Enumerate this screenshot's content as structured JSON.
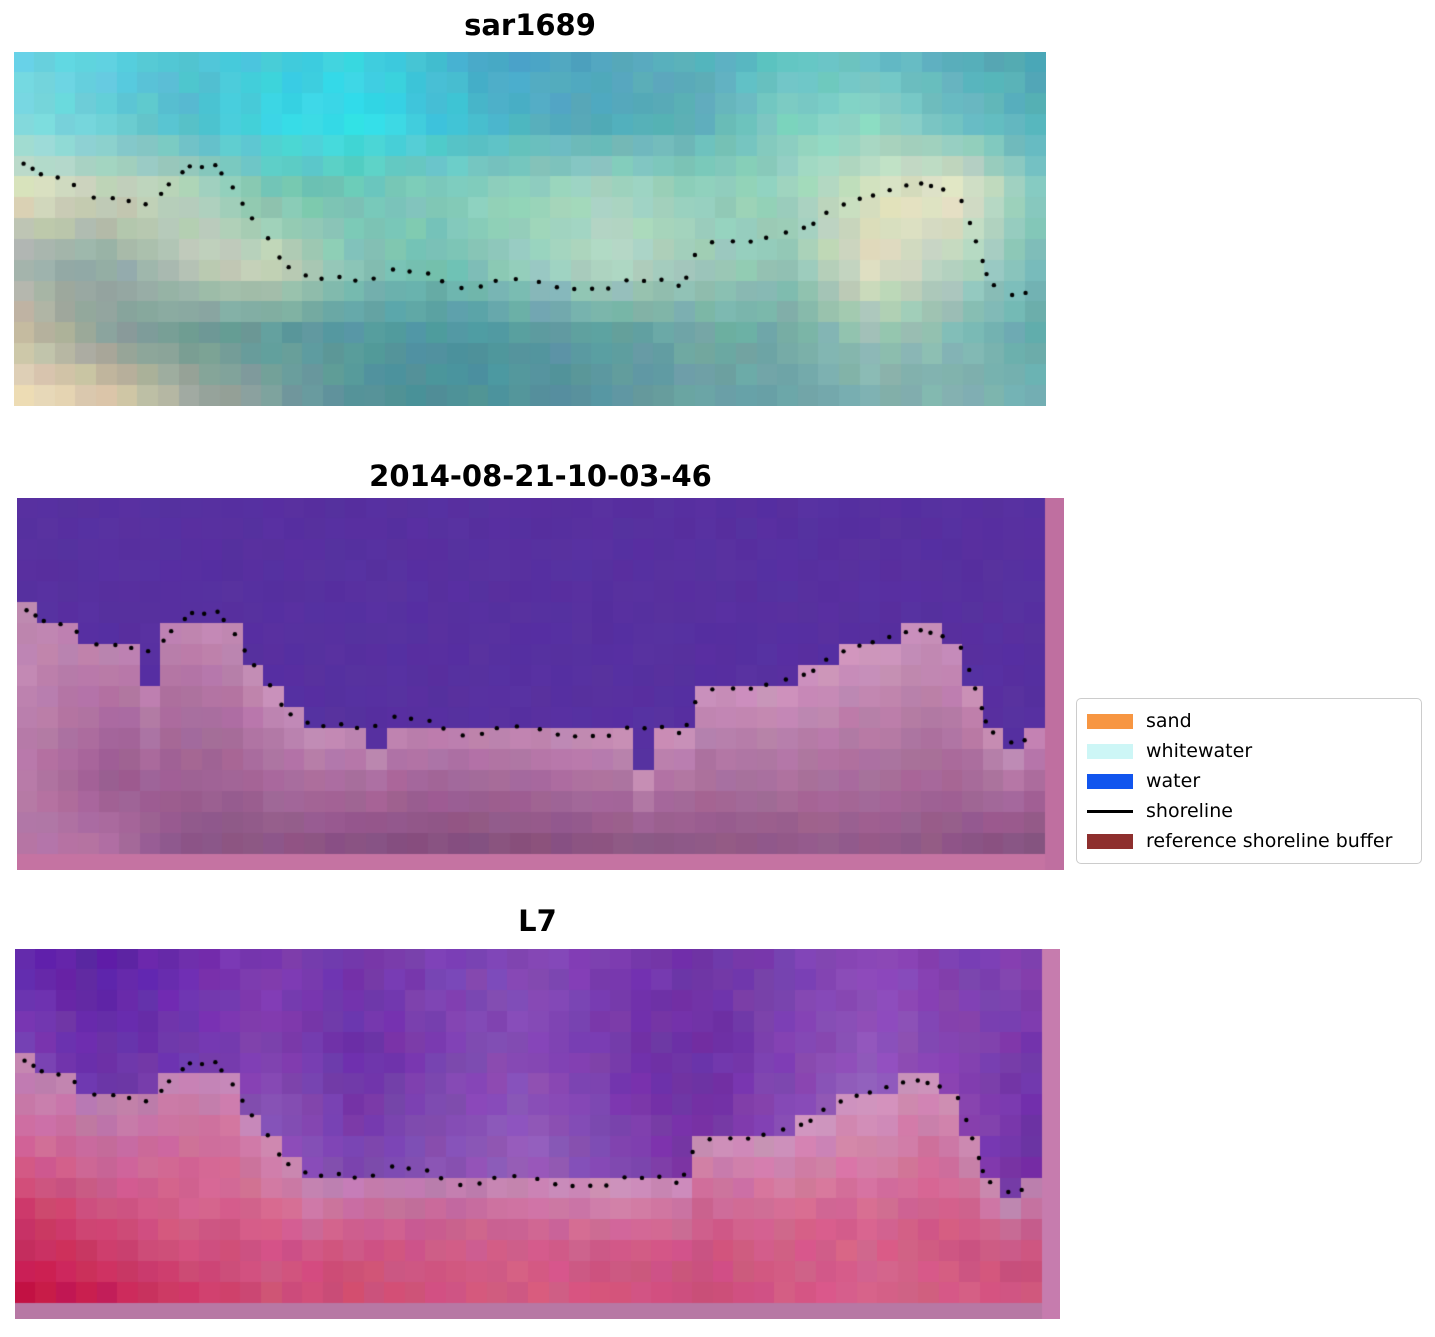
{
  "chart_data": {
    "type": "heatmap",
    "panel_titles": [
      "sar1689",
      "2014-08-21-10-03-46",
      "L7"
    ],
    "panels": [
      {
        "id": "sar1689",
        "title": "sar1689",
        "kind": "rgb",
        "coarse_grid": [
          [
            "#6ed7e3",
            "#59cfdf",
            "#4fc3d6",
            "#45ccdb",
            "#3ed2e0",
            "#47b7cd",
            "#4f9fc9",
            "#53a5bd",
            "#57aebd",
            "#5fbfc7",
            "#63bac3",
            "#57adbb",
            "#4aa3b3"
          ],
          [
            "#7fdde2",
            "#6cd0d8",
            "#55bcca",
            "#3bd5e4",
            "#2fdfeb",
            "#3fc5d6",
            "#4fb1c3",
            "#53aab8",
            "#5cb2b9",
            "#7fcfc1",
            "#90d8c3",
            "#6cc0c1",
            "#55b0ba"
          ],
          [
            "#e7dfbd",
            "#ccd2b4",
            "#bcd2bb",
            "#79c3b1",
            "#70c5b3",
            "#84cdbb",
            "#98d2bc",
            "#aad9c0",
            "#92cfbb",
            "#9cd4bd",
            "#d8dfc0",
            "#f0e8c4",
            "#7ec5c1"
          ],
          [
            "#a3b3ab",
            "#8ca8a3",
            "#bac7b4",
            "#cdd8bc",
            "#8ac5b5",
            "#70c0b0",
            "#9ad0c0",
            "#bad9c5",
            "#a6cdb9",
            "#90c5b9",
            "#e5e0bf",
            "#b5d5c1",
            "#74bdb9"
          ],
          [
            "#cfc0a8",
            "#909f98",
            "#6f9a94",
            "#5f9a98",
            "#549aa0",
            "#4f97a0",
            "#579aa4",
            "#5f9f9f",
            "#6faaa4",
            "#72aaa8",
            "#9ec4b4",
            "#84b8b4",
            "#62a8ac"
          ],
          [
            "#f2e0ba",
            "#e7d2ac",
            "#b2b09e",
            "#7f9f9a",
            "#549298",
            "#4a8f96",
            "#528f9a",
            "#5c97a0",
            "#679fa4",
            "#6fa5a8",
            "#77adac",
            "#7fb4b2",
            "#74b0b0"
          ]
        ],
        "jitter": 6
      },
      {
        "id": "classification",
        "title": "2014-08-21-10-03-46",
        "kind": "classified",
        "water_color": "#5730a0",
        "land_grid": [
          [
            "#c187b2",
            "#bc80ae",
            "#bf84b0",
            "#c58db7",
            "#bf85b1",
            "#bb7fad",
            "#be83af",
            "#c58db7",
            "#c88fb9",
            "#cc93bc",
            "#cf96bd",
            "#c78eb8",
            "#bf84b0"
          ],
          [
            "#c289b3",
            "#aa6c9e",
            "#ad70a0",
            "#b276a5",
            "#ac6e9f",
            "#a8699c",
            "#ab6d9e",
            "#b076a4",
            "#b37aa7",
            "#b77da9",
            "#ba80ab",
            "#b478a6",
            "#ab6d9e"
          ],
          [
            "#b97cab",
            "#9c5c90",
            "#9f6094",
            "#a36798",
            "#9d5e91",
            "#985a8d",
            "#9c5e90",
            "#a16596",
            "#a46898",
            "#a76b9a",
            "#aa6e9c",
            "#a36697",
            "#9a5a8e"
          ],
          [
            "#b678a8",
            "#b074a4",
            "#8b5284",
            "#8f5887",
            "#895183",
            "#85507f",
            "#88527f",
            "#8d5685",
            "#905887",
            "#935a89",
            "#955c8a",
            "#8f5786",
            "#85507f"
          ]
        ],
        "notches": [
          [
            0.138,
            2
          ],
          [
            0.345,
            1
          ],
          [
            0.615,
            2
          ]
        ],
        "right_strip_color": "#bf6fa0",
        "bottom_strip_color": "#c573a2",
        "jitter": 4
      },
      {
        "id": "l7",
        "title": "L7",
        "kind": "rgb_overlay",
        "water_grid": [
          [
            "#6226aa",
            "#5a1ea6",
            "#6e2cb0",
            "#7c39b2",
            "#7334ac",
            "#7c42b4",
            "#8347b6",
            "#7c3cb0",
            "#6e30a8",
            "#7940b2",
            "#8a4cb8",
            "#7c3eb0",
            "#8648b4"
          ],
          [
            "#7e44b2",
            "#6a2fa8",
            "#7336ac",
            "#8144b0",
            "#6c30a8",
            "#7c40b0",
            "#8a4eb6",
            "#7638ac",
            "#6c2ea4",
            "#8042b0",
            "#9058bc",
            "#8444b0",
            "#7334aa"
          ],
          [
            "#8a52b6",
            "#7c42ae",
            "#8850b4",
            "#9058b8",
            "#7e44b0",
            "#8a50b4",
            "#9560bc",
            "#8246b0",
            "#762fa6",
            "#8c50b4",
            "#a06cc2",
            "#8848b2",
            "#6c2ca4"
          ]
        ],
        "land_grid": [
          [
            "#c488b6",
            "#bc7cae",
            "#c280b0",
            "#c98ab6",
            "#c182b2",
            "#bd7cae",
            "#c786b4",
            "#cb8db8",
            "#c888b6",
            "#cd8fba",
            "#d094bc",
            "#c88ab6",
            "#bd7cae"
          ],
          [
            "#d0689a",
            "#cc6294",
            "#d06a98",
            "#d4729c",
            "#ce6492",
            "#c95f8e",
            "#cc6796",
            "#d2709e",
            "#cf6b9a",
            "#d475a0",
            "#d77ca4",
            "#d06c9a",
            "#c9628f"
          ],
          [
            "#cb3766",
            "#ce4672",
            "#d45e8a",
            "#d05684",
            "#cc4f7e",
            "#d05988",
            "#d4608c",
            "#d05786",
            "#cd5282",
            "#d25b88",
            "#d66490",
            "#d05786",
            "#cb4f7e"
          ],
          [
            "#c31247",
            "#c62253",
            "#cc3a62",
            "#d0507a",
            "#ce4a74",
            "#d05580",
            "#d45a84",
            "#d15680",
            "#ce517c",
            "#d25982",
            "#d66088",
            "#d25a82",
            "#cd537c"
          ]
        ],
        "right_strip_color": "#c67cae",
        "bottom_strip_color": "#b778a4",
        "jitter": 6
      }
    ],
    "shoreline_points": [
      [
        0.009,
        0.316
      ],
      [
        0.017,
        0.328
      ],
      [
        0.027,
        0.345
      ],
      [
        0.043,
        0.353
      ],
      [
        0.057,
        0.376
      ],
      [
        0.078,
        0.407
      ],
      [
        0.095,
        0.415
      ],
      [
        0.112,
        0.421
      ],
      [
        0.127,
        0.429
      ],
      [
        0.144,
        0.401
      ],
      [
        0.149,
        0.379
      ],
      [
        0.163,
        0.345
      ],
      [
        0.171,
        0.328
      ],
      [
        0.183,
        0.322
      ],
      [
        0.195,
        0.325
      ],
      [
        0.202,
        0.339
      ],
      [
        0.212,
        0.379
      ],
      [
        0.222,
        0.429
      ],
      [
        0.232,
        0.475
      ],
      [
        0.246,
        0.525
      ],
      [
        0.258,
        0.579
      ],
      [
        0.267,
        0.61
      ],
      [
        0.282,
        0.627
      ],
      [
        0.298,
        0.644
      ],
      [
        0.316,
        0.638
      ],
      [
        0.332,
        0.644
      ],
      [
        0.348,
        0.638
      ],
      [
        0.366,
        0.619
      ],
      [
        0.382,
        0.621
      ],
      [
        0.4,
        0.63
      ],
      [
        0.416,
        0.653
      ],
      [
        0.434,
        0.667
      ],
      [
        0.452,
        0.658
      ],
      [
        0.468,
        0.644
      ],
      [
        0.485,
        0.644
      ],
      [
        0.508,
        0.653
      ],
      [
        0.526,
        0.661
      ],
      [
        0.544,
        0.664
      ],
      [
        0.56,
        0.664
      ],
      [
        0.576,
        0.667
      ],
      [
        0.594,
        0.644
      ],
      [
        0.611,
        0.644
      ],
      [
        0.628,
        0.644
      ],
      [
        0.643,
        0.658
      ],
      [
        0.65,
        0.633
      ],
      [
        0.66,
        0.573
      ],
      [
        0.677,
        0.542
      ],
      [
        0.696,
        0.537
      ],
      [
        0.713,
        0.531
      ],
      [
        0.73,
        0.525
      ],
      [
        0.747,
        0.514
      ],
      [
        0.764,
        0.5
      ],
      [
        0.774,
        0.483
      ],
      [
        0.788,
        0.455
      ],
      [
        0.805,
        0.429
      ],
      [
        0.82,
        0.418
      ],
      [
        0.832,
        0.401
      ],
      [
        0.849,
        0.387
      ],
      [
        0.865,
        0.381
      ],
      [
        0.878,
        0.373
      ],
      [
        0.89,
        0.376
      ],
      [
        0.9,
        0.384
      ],
      [
        0.917,
        0.424
      ],
      [
        0.926,
        0.483
      ],
      [
        0.933,
        0.54
      ],
      [
        0.938,
        0.588
      ],
      [
        0.943,
        0.63
      ],
      [
        0.95,
        0.664
      ],
      [
        0.968,
        0.681
      ],
      [
        0.98,
        0.675
      ]
    ],
    "shoreline_style": {
      "color": "#000000",
      "dot_radius": 2.2
    },
    "legend": {
      "items": [
        {
          "label": "sand",
          "color": "#f79642",
          "swatch": "patch"
        },
        {
          "label": "whitewater",
          "color": "#cdf6f6",
          "swatch": "patch"
        },
        {
          "label": "water",
          "color": "#1155ee",
          "swatch": "patch"
        },
        {
          "label": "shoreline",
          "color": "#000000",
          "swatch": "line"
        },
        {
          "label": "reference shoreline buffer",
          "color": "#8e2f2e",
          "swatch": "patch"
        }
      ]
    }
  }
}
